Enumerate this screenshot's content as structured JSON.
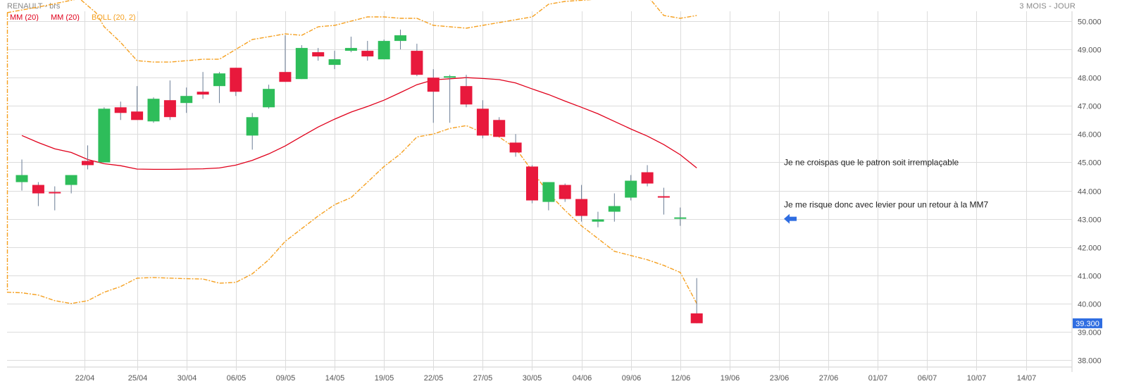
{
  "header": {
    "title": "RENAULT - brs",
    "period": "3 MOIS - JOUR"
  },
  "legend": [
    {
      "label": "MM (20)",
      "color": "#e0001b"
    },
    {
      "label": "MM (20)",
      "color": "#e0001b"
    },
    {
      "label": "BOLL (20, 2)",
      "color": "#f5a020"
    }
  ],
  "colors": {
    "up": "#2ebd5a",
    "down": "#e8193c",
    "wick": "#6b7d96",
    "mm": "#e0001b",
    "boll": "#f5a020",
    "grid": "#dcdcdc",
    "price_tag": "#2f6de1",
    "arrow": "#2f6de1"
  },
  "annotations": [
    {
      "text": "Je ne croispas que le patron soit irremplaçable",
      "x": 46.3,
      "y": 44.9
    },
    {
      "text": "Je me risque donc avec levier pour un retour à la MM7",
      "x": 46.3,
      "y": 43.4
    }
  ],
  "chart_data": {
    "type": "candlestick",
    "ylim": [
      37.75,
      50.35
    ],
    "xlim": [
      -0.9,
      63.8
    ],
    "y_ticks": [
      {
        "value": 50,
        "label": "50.000"
      },
      {
        "value": 49,
        "label": "49.000"
      },
      {
        "value": 48,
        "label": "48.000"
      },
      {
        "value": 47,
        "label": "47.000"
      },
      {
        "value": 46,
        "label": "46.000"
      },
      {
        "value": 45,
        "label": "45.000"
      },
      {
        "value": 44,
        "label": "44.000"
      },
      {
        "value": 43,
        "label": "43.000"
      },
      {
        "value": 42,
        "label": "42.000"
      },
      {
        "value": 41,
        "label": "41.000"
      },
      {
        "value": 40,
        "label": "40.000"
      },
      {
        "value": 39,
        "label": "39.000"
      },
      {
        "value": 38,
        "label": "38.000"
      }
    ],
    "x_ticks": [
      {
        "t": 3.8,
        "label": "22/04"
      },
      {
        "t": 7,
        "label": "25/04"
      },
      {
        "t": 10,
        "label": "30/04"
      },
      {
        "t": 13,
        "label": "06/05"
      },
      {
        "t": 16,
        "label": "09/05"
      },
      {
        "t": 19,
        "label": "14/05"
      },
      {
        "t": 22,
        "label": "19/05"
      },
      {
        "t": 25,
        "label": "22/05"
      },
      {
        "t": 28,
        "label": "27/05"
      },
      {
        "t": 31,
        "label": "30/05"
      },
      {
        "t": 34,
        "label": "04/06"
      },
      {
        "t": 37,
        "label": "09/06"
      },
      {
        "t": 40,
        "label": "12/06"
      },
      {
        "t": 43,
        "label": "19/06"
      },
      {
        "t": 46,
        "label": "23/06"
      },
      {
        "t": 49,
        "label": "27/06"
      },
      {
        "t": 52,
        "label": "01/07"
      },
      {
        "t": 55,
        "label": "06/07"
      },
      {
        "t": 58,
        "label": "10/07"
      },
      {
        "t": 61,
        "label": "14/07"
      }
    ],
    "candles": [
      {
        "t": 0,
        "o": 44.3,
        "h": 45.1,
        "l": 44.0,
        "c": 44.55
      },
      {
        "t": 1,
        "o": 44.2,
        "h": 44.3,
        "l": 43.45,
        "c": 43.9
      },
      {
        "t": 2,
        "o": 43.95,
        "h": 44.15,
        "l": 43.3,
        "c": 43.9
      },
      {
        "t": 3,
        "o": 44.2,
        "h": 44.5,
        "l": 43.9,
        "c": 44.55
      },
      {
        "t": 4,
        "o": 45.05,
        "h": 45.6,
        "l": 44.75,
        "c": 44.9
      },
      {
        "t": 5,
        "o": 45.0,
        "h": 46.95,
        "l": 45.0,
        "c": 46.9
      },
      {
        "t": 6,
        "o": 46.95,
        "h": 47.15,
        "l": 46.5,
        "c": 46.75
      },
      {
        "t": 7,
        "o": 46.8,
        "h": 47.7,
        "l": 46.5,
        "c": 46.5
      },
      {
        "t": 8,
        "o": 46.45,
        "h": 47.3,
        "l": 46.4,
        "c": 47.25
      },
      {
        "t": 9,
        "o": 47.2,
        "h": 47.9,
        "l": 46.5,
        "c": 46.6
      },
      {
        "t": 10,
        "o": 47.1,
        "h": 47.65,
        "l": 46.75,
        "c": 47.35
      },
      {
        "t": 11,
        "o": 47.5,
        "h": 48.2,
        "l": 47.25,
        "c": 47.4
      },
      {
        "t": 12,
        "o": 47.7,
        "h": 48.2,
        "l": 47.1,
        "c": 48.15
      },
      {
        "t": 13,
        "o": 48.35,
        "h": 48.35,
        "l": 47.35,
        "c": 47.5
      },
      {
        "t": 14,
        "o": 45.95,
        "h": 46.75,
        "l": 45.45,
        "c": 46.6
      },
      {
        "t": 15,
        "o": 46.95,
        "h": 47.75,
        "l": 46.9,
        "c": 47.6
      },
      {
        "t": 16,
        "o": 48.2,
        "h": 49.5,
        "l": 47.85,
        "c": 47.85
      },
      {
        "t": 17,
        "o": 47.95,
        "h": 49.15,
        "l": 47.95,
        "c": 49.05
      },
      {
        "t": 18,
        "o": 48.9,
        "h": 49.05,
        "l": 48.6,
        "c": 48.75
      },
      {
        "t": 19,
        "o": 48.45,
        "h": 48.95,
        "l": 48.3,
        "c": 48.65
      },
      {
        "t": 20,
        "o": 48.95,
        "h": 49.45,
        "l": 48.9,
        "c": 49.05
      },
      {
        "t": 21,
        "o": 48.95,
        "h": 49.3,
        "l": 48.6,
        "c": 48.75
      },
      {
        "t": 22,
        "o": 48.65,
        "h": 49.35,
        "l": 48.65,
        "c": 49.3
      },
      {
        "t": 23,
        "o": 49.3,
        "h": 49.7,
        "l": 49.0,
        "c": 49.5
      },
      {
        "t": 24,
        "o": 48.95,
        "h": 49.2,
        "l": 48.05,
        "c": 48.1
      },
      {
        "t": 25,
        "o": 48.0,
        "h": 48.3,
        "l": 46.4,
        "c": 47.5
      },
      {
        "t": 26,
        "o": 48.05,
        "h": 48.1,
        "l": 46.4,
        "c": 48.05
      },
      {
        "t": 27,
        "o": 47.7,
        "h": 48.1,
        "l": 46.95,
        "c": 47.05
      },
      {
        "t": 28,
        "o": 46.9,
        "h": 47.2,
        "l": 45.85,
        "c": 45.95
      },
      {
        "t": 29,
        "o": 46.5,
        "h": 46.6,
        "l": 45.9,
        "c": 45.9
      },
      {
        "t": 30,
        "o": 45.7,
        "h": 46.0,
        "l": 45.2,
        "c": 45.35
      },
      {
        "t": 31,
        "o": 44.85,
        "h": 44.9,
        "l": 43.55,
        "c": 43.65
      },
      {
        "t": 32,
        "o": 43.6,
        "h": 44.3,
        "l": 43.3,
        "c": 44.3
      },
      {
        "t": 33,
        "o": 44.2,
        "h": 44.25,
        "l": 43.6,
        "c": 43.7
      },
      {
        "t": 34,
        "o": 43.7,
        "h": 44.2,
        "l": 42.9,
        "c": 43.1
      },
      {
        "t": 35,
        "o": 42.9,
        "h": 43.25,
        "l": 42.7,
        "c": 42.98
      },
      {
        "t": 36,
        "o": 43.25,
        "h": 43.9,
        "l": 42.9,
        "c": 43.45
      },
      {
        "t": 37,
        "o": 43.75,
        "h": 44.55,
        "l": 43.65,
        "c": 44.35
      },
      {
        "t": 38,
        "o": 44.65,
        "h": 44.9,
        "l": 44.15,
        "c": 44.25
      },
      {
        "t": 39,
        "o": 43.8,
        "h": 44.1,
        "l": 43.15,
        "c": 43.75
      },
      {
        "t": 40,
        "o": 43.0,
        "h": 43.4,
        "l": 42.75,
        "c": 43.05
      },
      {
        "t": 41,
        "o": 39.65,
        "h": 40.9,
        "l": 39.3,
        "c": 39.3
      }
    ],
    "mm20": [
      {
        "t": 0,
        "y": 45.95
      },
      {
        "t": 1,
        "y": 45.7
      },
      {
        "t": 2,
        "y": 45.48
      },
      {
        "t": 3,
        "y": 45.35
      },
      {
        "t": 4,
        "y": 45.1
      },
      {
        "t": 5,
        "y": 44.95
      },
      {
        "t": 6,
        "y": 44.88
      },
      {
        "t": 7,
        "y": 44.76
      },
      {
        "t": 8,
        "y": 44.75
      },
      {
        "t": 9,
        "y": 44.75
      },
      {
        "t": 10,
        "y": 44.76
      },
      {
        "t": 11,
        "y": 44.77
      },
      {
        "t": 12,
        "y": 44.8
      },
      {
        "t": 13,
        "y": 44.9
      },
      {
        "t": 14,
        "y": 45.07
      },
      {
        "t": 15,
        "y": 45.3
      },
      {
        "t": 16,
        "y": 45.58
      },
      {
        "t": 17,
        "y": 45.92
      },
      {
        "t": 18,
        "y": 46.25
      },
      {
        "t": 19,
        "y": 46.53
      },
      {
        "t": 20,
        "y": 46.78
      },
      {
        "t": 21,
        "y": 46.98
      },
      {
        "t": 22,
        "y": 47.2
      },
      {
        "t": 23,
        "y": 47.47
      },
      {
        "t": 24,
        "y": 47.75
      },
      {
        "t": 25,
        "y": 47.92
      },
      {
        "t": 26,
        "y": 47.96
      },
      {
        "t": 27,
        "y": 48.0
      },
      {
        "t": 28,
        "y": 47.97
      },
      {
        "t": 29,
        "y": 47.93
      },
      {
        "t": 30,
        "y": 47.81
      },
      {
        "t": 31,
        "y": 47.6
      },
      {
        "t": 32,
        "y": 47.4
      },
      {
        "t": 33,
        "y": 47.17
      },
      {
        "t": 34,
        "y": 46.95
      },
      {
        "t": 35,
        "y": 46.72
      },
      {
        "t": 36,
        "y": 46.45
      },
      {
        "t": 37,
        "y": 46.18
      },
      {
        "t": 38,
        "y": 45.93
      },
      {
        "t": 39,
        "y": 45.63
      },
      {
        "t": 40,
        "y": 45.27
      },
      {
        "t": 41,
        "y": 44.8
      }
    ],
    "boll_upper": [
      {
        "t": -0.9,
        "y": 50.3
      },
      {
        "t": 1.0,
        "y": 50.5
      },
      {
        "t": 3.5,
        "y": 50.8
      },
      {
        "t": 4.5,
        "y": 50.3
      },
      {
        "t": 5,
        "y": 49.8
      },
      {
        "t": 6,
        "y": 49.25
      },
      {
        "t": 7,
        "y": 48.6
      },
      {
        "t": 8,
        "y": 48.55
      },
      {
        "t": 9,
        "y": 48.55
      },
      {
        "t": 10,
        "y": 48.6
      },
      {
        "t": 11,
        "y": 48.65
      },
      {
        "t": 12,
        "y": 48.65
      },
      {
        "t": 13,
        "y": 49.0
      },
      {
        "t": 14,
        "y": 49.35
      },
      {
        "t": 15,
        "y": 49.45
      },
      {
        "t": 16,
        "y": 49.55
      },
      {
        "t": 17,
        "y": 49.5
      },
      {
        "t": 18,
        "y": 49.8
      },
      {
        "t": 19,
        "y": 49.85
      },
      {
        "t": 20,
        "y": 50.0
      },
      {
        "t": 21,
        "y": 50.15
      },
      {
        "t": 22,
        "y": 50.15
      },
      {
        "t": 23,
        "y": 50.1
      },
      {
        "t": 24,
        "y": 50.1
      },
      {
        "t": 25,
        "y": 49.85
      },
      {
        "t": 26,
        "y": 49.8
      },
      {
        "t": 27,
        "y": 49.75
      },
      {
        "t": 28,
        "y": 49.85
      },
      {
        "t": 29,
        "y": 49.95
      },
      {
        "t": 30,
        "y": 50.05
      },
      {
        "t": 31,
        "y": 50.15
      },
      {
        "t": 32,
        "y": 50.6
      },
      {
        "t": 33,
        "y": 50.7
      },
      {
        "t": 38,
        "y": 50.9
      },
      {
        "t": 39,
        "y": 50.2
      },
      {
        "t": 40,
        "y": 50.1
      },
      {
        "t": 41,
        "y": 50.2
      }
    ],
    "boll_lower": [
      {
        "t": -0.9,
        "y": 40.4
      },
      {
        "t": 0,
        "y": 40.38
      },
      {
        "t": 1,
        "y": 40.3
      },
      {
        "t": 2,
        "y": 40.1
      },
      {
        "t": 3,
        "y": 40.0
      },
      {
        "t": 4,
        "y": 40.1
      },
      {
        "t": 5,
        "y": 40.4
      },
      {
        "t": 6,
        "y": 40.6
      },
      {
        "t": 7,
        "y": 40.9
      },
      {
        "t": 8,
        "y": 40.92
      },
      {
        "t": 9,
        "y": 40.9
      },
      {
        "t": 10,
        "y": 40.88
      },
      {
        "t": 11,
        "y": 40.87
      },
      {
        "t": 12,
        "y": 40.72
      },
      {
        "t": 13,
        "y": 40.75
      },
      {
        "t": 14,
        "y": 41.05
      },
      {
        "t": 15,
        "y": 41.55
      },
      {
        "t": 16,
        "y": 42.2
      },
      {
        "t": 17,
        "y": 42.65
      },
      {
        "t": 18,
        "y": 43.1
      },
      {
        "t": 19,
        "y": 43.5
      },
      {
        "t": 20,
        "y": 43.75
      },
      {
        "t": 21,
        "y": 44.3
      },
      {
        "t": 22,
        "y": 44.85
      },
      {
        "t": 23,
        "y": 45.3
      },
      {
        "t": 24,
        "y": 45.9
      },
      {
        "t": 25,
        "y": 46.0
      },
      {
        "t": 26,
        "y": 46.2
      },
      {
        "t": 27,
        "y": 46.3
      },
      {
        "t": 28,
        "y": 46.05
      },
      {
        "t": 29,
        "y": 45.9
      },
      {
        "t": 30,
        "y": 45.5
      },
      {
        "t": 31,
        "y": 44.7
      },
      {
        "t": 32,
        "y": 43.9
      },
      {
        "t": 33,
        "y": 43.3
      },
      {
        "t": 34,
        "y": 42.75
      },
      {
        "t": 35,
        "y": 42.3
      },
      {
        "t": 36,
        "y": 41.85
      },
      {
        "t": 37,
        "y": 41.7
      },
      {
        "t": 38,
        "y": 41.55
      },
      {
        "t": 39,
        "y": 41.35
      },
      {
        "t": 40,
        "y": 41.1
      },
      {
        "t": 41,
        "y": 40.0
      }
    ],
    "last_price": {
      "value": 39.3,
      "label": "39.300"
    }
  }
}
